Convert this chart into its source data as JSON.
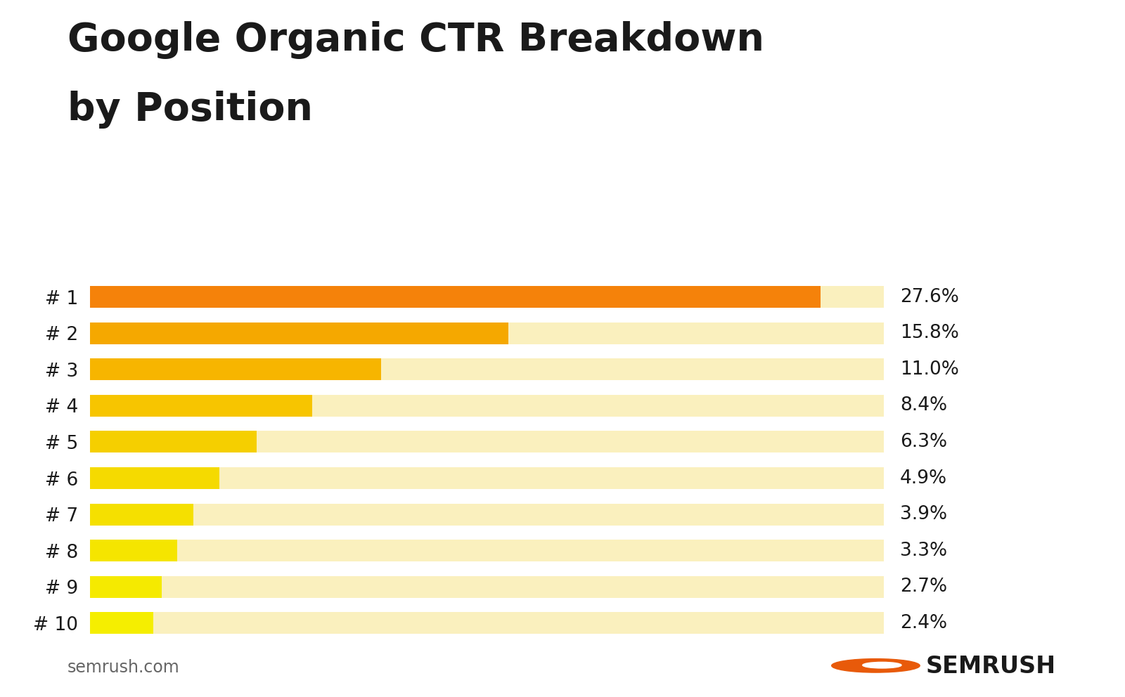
{
  "title_line1": "Google Organic CTR Breakdown",
  "title_line2": "by Position",
  "positions": [
    "# 1",
    "# 2",
    "# 3",
    "# 4",
    "# 5",
    "# 6",
    "# 7",
    "# 8",
    "# 9",
    "# 10"
  ],
  "values": [
    27.6,
    15.8,
    11.0,
    8.4,
    6.3,
    4.9,
    3.9,
    3.3,
    2.7,
    2.4
  ],
  "labels": [
    "27.6%",
    "15.8%",
    "11.0%",
    "8.4%",
    "6.3%",
    "4.9%",
    "3.9%",
    "3.3%",
    "2.7%",
    "2.4%"
  ],
  "bar_colors": [
    "#F5820A",
    "#F5A800",
    "#F7B500",
    "#F7C500",
    "#F5CF00",
    "#F5DA00",
    "#F5E000",
    "#F5E500",
    "#F5EA00",
    "#F5EE00"
  ],
  "bg_bar_color": "#FAF0BE",
  "background_color": "#FFFFFF",
  "max_value": 30.0,
  "title_fontsize": 40,
  "ytick_fontsize": 19,
  "value_fontsize": 19,
  "footer_text": "semrush.com",
  "footer_fontsize": 17,
  "semrush_text": "SEMRUSH",
  "semrush_fontsize": 24,
  "bar_height": 0.6
}
